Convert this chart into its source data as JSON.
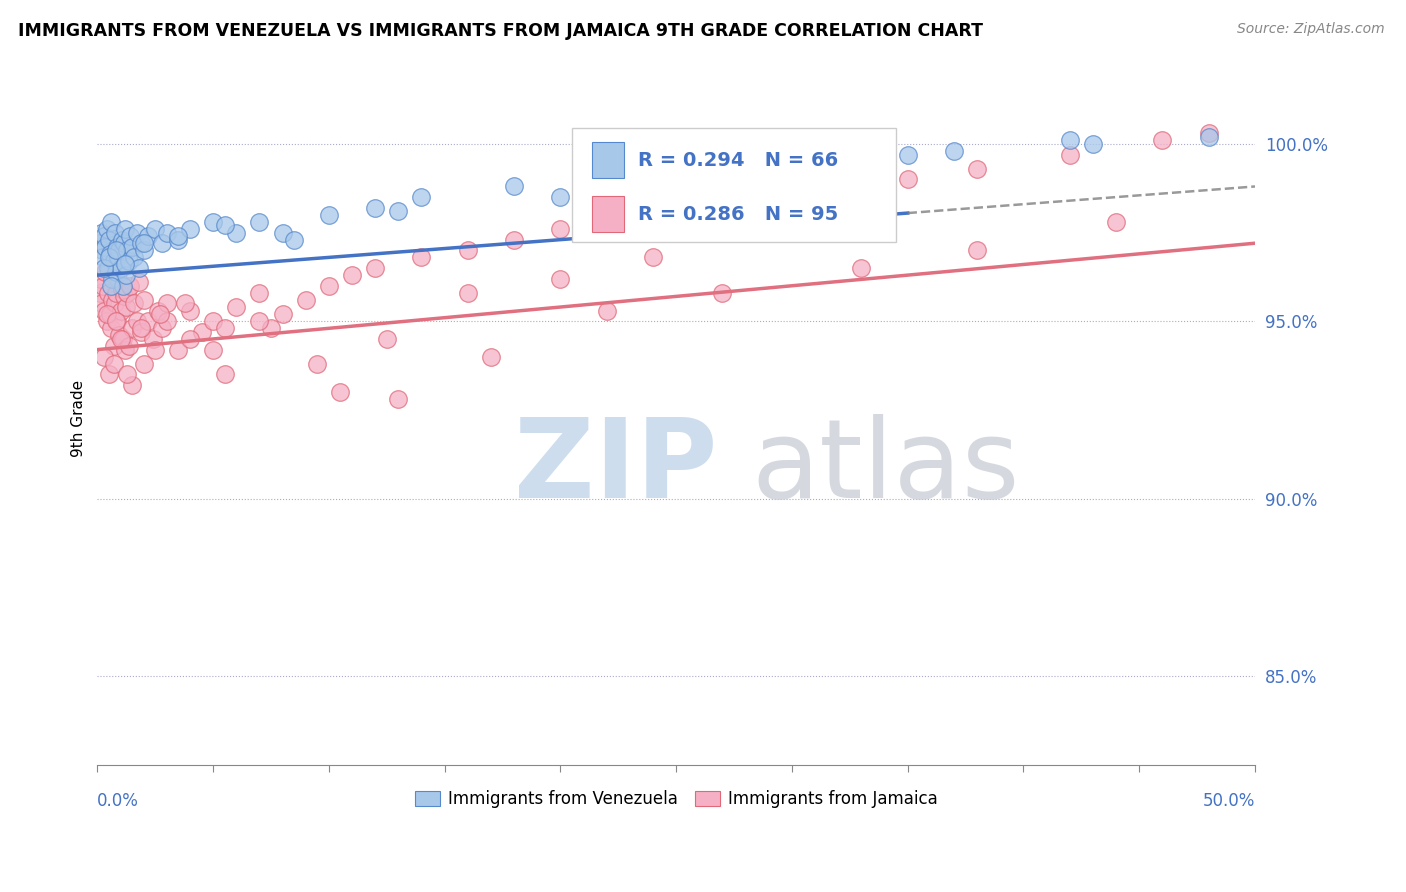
{
  "title": "IMMIGRANTS FROM VENEZUELA VS IMMIGRANTS FROM JAMAICA 9TH GRADE CORRELATION CHART",
  "source": "Source: ZipAtlas.com",
  "ylabel": "9th Grade",
  "xmin": 0.0,
  "xmax": 50.0,
  "ymin": 82.5,
  "ymax": 102.0,
  "venezuela_color": "#a8c8ea",
  "jamaica_color": "#f5b0c5",
  "venezuela_edge_color": "#5588cc",
  "jamaica_edge_color": "#e06878",
  "venezuela_line_color": "#4472c4",
  "jamaica_line_color": "#e07080",
  "venezuela_R": 0.294,
  "venezuela_N": 66,
  "jamaica_R": 0.286,
  "jamaica_N": 95,
  "yticks": [
    85.0,
    90.0,
    95.0,
    100.0
  ],
  "venezuela_trend_x0": 0.0,
  "venezuela_trend_y0": 96.3,
  "venezuela_trend_x1": 50.0,
  "venezuela_trend_y1": 98.8,
  "jamaica_trend_x0": 0.0,
  "jamaica_trend_y0": 94.2,
  "jamaica_trend_x1": 50.0,
  "jamaica_trend_y1": 97.2,
  "dashed_start_x": 35.0,
  "venezuela_x": [
    0.1,
    0.15,
    0.2,
    0.25,
    0.3,
    0.35,
    0.4,
    0.45,
    0.5,
    0.55,
    0.6,
    0.65,
    0.7,
    0.75,
    0.8,
    0.85,
    0.9,
    0.95,
    1.0,
    1.05,
    1.1,
    1.15,
    1.2,
    1.25,
    1.3,
    1.35,
    1.4,
    1.5,
    1.6,
    1.7,
    1.8,
    1.9,
    2.0,
    2.2,
    2.5,
    2.8,
    3.0,
    3.5,
    4.0,
    5.0,
    6.0,
    7.0,
    8.0,
    10.0,
    12.0,
    14.0,
    18.0,
    22.0,
    30.0,
    37.0,
    43.0,
    48.0,
    0.3,
    0.5,
    0.8,
    1.2,
    2.0,
    3.5,
    5.5,
    8.5,
    13.0,
    20.0,
    28.0,
    35.0,
    42.0,
    0.6
  ],
  "venezuela_y": [
    97.2,
    97.5,
    97.0,
    96.8,
    97.4,
    97.1,
    97.6,
    96.5,
    97.3,
    96.9,
    97.8,
    96.2,
    96.7,
    97.5,
    96.4,
    97.1,
    96.8,
    97.0,
    96.5,
    97.3,
    96.0,
    97.2,
    97.6,
    96.3,
    97.0,
    96.7,
    97.4,
    97.1,
    96.8,
    97.5,
    96.5,
    97.2,
    97.0,
    97.4,
    97.6,
    97.2,
    97.5,
    97.3,
    97.6,
    97.8,
    97.5,
    97.8,
    97.5,
    98.0,
    98.2,
    98.5,
    98.8,
    99.0,
    99.5,
    99.8,
    100.0,
    100.2,
    96.5,
    96.8,
    97.0,
    96.6,
    97.2,
    97.4,
    97.7,
    97.3,
    98.1,
    98.5,
    99.2,
    99.7,
    100.1,
    96.0
  ],
  "jamaica_x": [
    0.1,
    0.15,
    0.2,
    0.25,
    0.3,
    0.35,
    0.4,
    0.45,
    0.5,
    0.55,
    0.6,
    0.65,
    0.7,
    0.75,
    0.8,
    0.85,
    0.9,
    0.95,
    1.0,
    1.05,
    1.1,
    1.15,
    1.2,
    1.25,
    1.3,
    1.35,
    1.4,
    1.5,
    1.6,
    1.7,
    1.8,
    1.9,
    2.0,
    2.2,
    2.4,
    2.6,
    2.8,
    3.0,
    3.5,
    4.0,
    4.5,
    5.0,
    5.5,
    6.0,
    7.0,
    8.0,
    9.0,
    10.0,
    11.0,
    12.0,
    14.0,
    16.0,
    18.0,
    20.0,
    22.0,
    25.0,
    28.0,
    30.0,
    35.0,
    38.0,
    42.0,
    46.0,
    0.3,
    0.5,
    0.7,
    1.0,
    1.5,
    2.0,
    2.5,
    3.0,
    4.0,
    5.5,
    7.5,
    10.5,
    13.0,
    17.0,
    22.0,
    27.0,
    33.0,
    38.0,
    44.0,
    48.0,
    0.4,
    0.8,
    1.3,
    1.9,
    2.7,
    3.8,
    5.0,
    7.0,
    9.5,
    12.5,
    16.0,
    20.0,
    24.0
  ],
  "jamaica_y": [
    95.8,
    96.2,
    95.5,
    96.0,
    95.3,
    96.4,
    95.0,
    95.8,
    96.5,
    95.2,
    94.8,
    95.6,
    94.3,
    95.5,
    95.8,
    95.0,
    96.2,
    94.6,
    95.3,
    95.9,
    94.5,
    95.7,
    94.2,
    95.4,
    95.8,
    94.3,
    96.0,
    94.8,
    95.5,
    95.0,
    96.1,
    94.7,
    95.6,
    95.0,
    94.5,
    95.3,
    94.8,
    95.5,
    94.2,
    95.3,
    94.7,
    95.0,
    94.8,
    95.4,
    95.8,
    95.2,
    95.6,
    96.0,
    96.3,
    96.5,
    96.8,
    97.0,
    97.3,
    97.6,
    97.8,
    98.0,
    98.3,
    98.5,
    99.0,
    99.3,
    99.7,
    100.1,
    94.0,
    93.5,
    93.8,
    94.5,
    93.2,
    93.8,
    94.2,
    95.0,
    94.5,
    93.5,
    94.8,
    93.0,
    92.8,
    94.0,
    95.3,
    95.8,
    96.5,
    97.0,
    97.8,
    100.3,
    95.2,
    95.0,
    93.5,
    94.8,
    95.2,
    95.5,
    94.2,
    95.0,
    93.8,
    94.5,
    95.8,
    96.2,
    96.8
  ]
}
